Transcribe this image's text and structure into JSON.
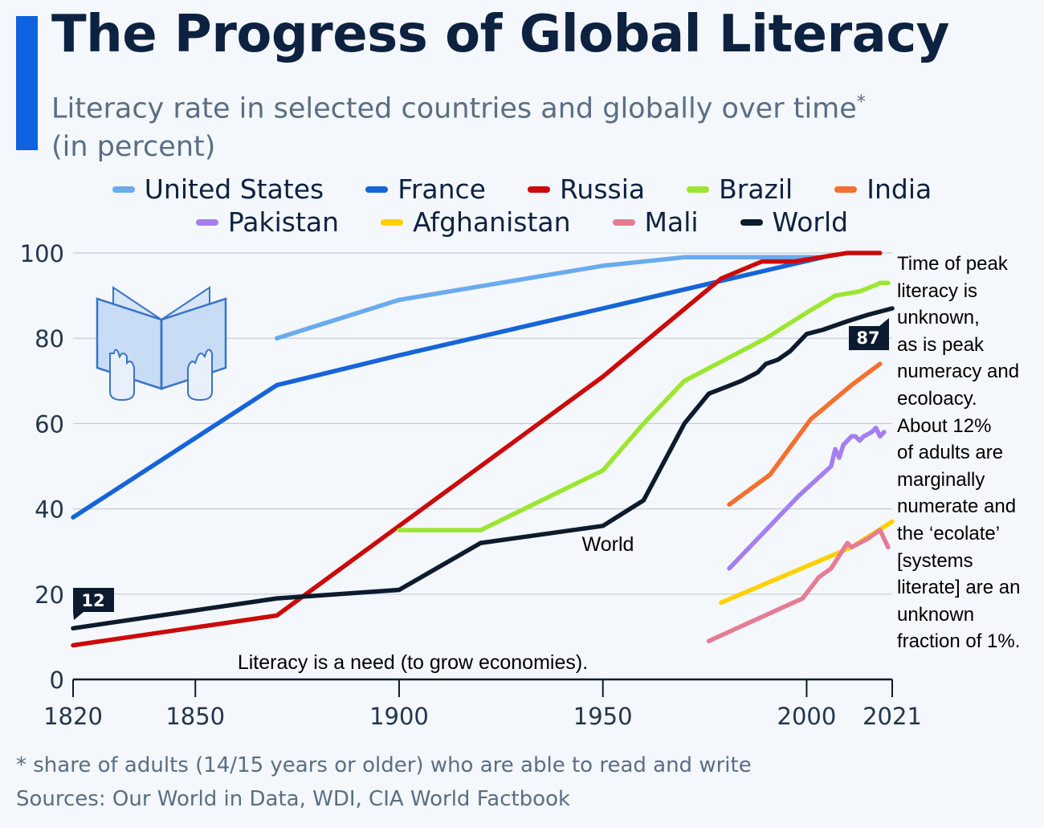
{
  "title": "The Progress of Global Literacy",
  "subtitle_line1": "Literacy rate in selected countries and globally over time",
  "subtitle_asterisk": "*",
  "subtitle_line2": "(in percent)",
  "footnote": "* share of adults (14/15 years or older) who are able to read and write",
  "sources": "Sources: Our World in Data, WDI, CIA World Factbook",
  "side_note_lines": [
    "Time of peak",
    "literacy is",
    "unknown,",
    "as is peak",
    "numeracy and",
    "ecoloacy.",
    "About 12%",
    "of adults are",
    "marginally",
    "numerate and",
    "the ‘ecolate’",
    "[systems",
    "literate] are an",
    "unknown",
    "fraction of 1%."
  ],
  "annotations": {
    "world_label": "World",
    "bottom_text": "Literacy is a need (to grow economies).",
    "start_badge": "12",
    "end_badge": "87"
  },
  "chart_data": {
    "type": "line",
    "xlim": [
      1820,
      2021
    ],
    "ylim": [
      0,
      100
    ],
    "x_ticks": [
      1820,
      1850,
      1900,
      1950,
      2000,
      2021
    ],
    "y_ticks": [
      0,
      20,
      40,
      60,
      80,
      100
    ],
    "grid": true,
    "legend": "top",
    "series": [
      {
        "name": "United States",
        "color": "#6aabed",
        "points": [
          [
            1870,
            80
          ],
          [
            1900,
            89
          ],
          [
            1950,
            97
          ],
          [
            1970,
            99
          ],
          [
            2004,
            99
          ]
        ]
      },
      {
        "name": "France",
        "color": "#1565d8",
        "points": [
          [
            1820,
            38
          ],
          [
            1870,
            69
          ],
          [
            1900,
            76
          ],
          [
            1950,
            87
          ],
          [
            2004,
            99
          ]
        ]
      },
      {
        "name": "Russia",
        "color": "#cc0a0a",
        "points": [
          [
            1820,
            8
          ],
          [
            1870,
            15
          ],
          [
            1900,
            36
          ],
          [
            1950,
            71
          ],
          [
            1979,
            94
          ],
          [
            1989,
            98
          ],
          [
            1997,
            98
          ],
          [
            2010,
            100
          ],
          [
            2018,
            100
          ]
        ]
      },
      {
        "name": "Brazil",
        "color": "#9ce630",
        "points": [
          [
            1900,
            35
          ],
          [
            1920,
            35
          ],
          [
            1950,
            49
          ],
          [
            1960,
            60
          ],
          [
            1970,
            70
          ],
          [
            1980,
            75
          ],
          [
            1990,
            80
          ],
          [
            2000,
            86
          ],
          [
            2007,
            90
          ],
          [
            2013,
            91
          ],
          [
            2017,
            92.5
          ],
          [
            2018,
            93
          ],
          [
            2020,
            93
          ]
        ]
      },
      {
        "name": "India",
        "color": "#f56f2e",
        "points": [
          [
            1981,
            41
          ],
          [
            1991,
            48
          ],
          [
            2001,
            61
          ],
          [
            2011,
            69
          ],
          [
            2018,
            74
          ]
        ]
      },
      {
        "name": "Pakistan",
        "color": "#a57ef0",
        "points": [
          [
            1981,
            26
          ],
          [
            1998,
            43
          ],
          [
            2006,
            50
          ],
          [
            2007,
            54
          ],
          [
            2008,
            52
          ],
          [
            2009,
            55
          ],
          [
            2011,
            57
          ],
          [
            2012,
            57
          ],
          [
            2013,
            56
          ],
          [
            2014,
            57
          ],
          [
            2016,
            58
          ],
          [
            2017,
            59
          ],
          [
            2018,
            57
          ],
          [
            2019,
            58
          ]
        ]
      },
      {
        "name": "Afghanistan",
        "color": "#ffd000",
        "points": [
          [
            1979,
            18
          ],
          [
            2011,
            31
          ],
          [
            2021,
            37
          ]
        ]
      },
      {
        "name": "Mali",
        "color": "#e57c93",
        "points": [
          [
            1976,
            9
          ],
          [
            1999,
            19
          ],
          [
            2003,
            24
          ],
          [
            2006,
            26
          ],
          [
            2010,
            32
          ],
          [
            2011,
            31
          ],
          [
            2015,
            33
          ],
          [
            2018,
            35
          ],
          [
            2020,
            31
          ]
        ]
      },
      {
        "name": "World",
        "color": "#0d1b2e",
        "points": [
          [
            1820,
            12
          ],
          [
            1870,
            19
          ],
          [
            1900,
            21
          ],
          [
            1920,
            32
          ],
          [
            1950,
            36
          ],
          [
            1960,
            42
          ],
          [
            1970,
            60
          ],
          [
            1976,
            67
          ],
          [
            1980,
            68.5
          ],
          [
            1984,
            70
          ],
          [
            1988,
            72
          ],
          [
            1990,
            74
          ],
          [
            1993,
            75
          ],
          [
            1996,
            77
          ],
          [
            2000,
            81
          ],
          [
            2004,
            82
          ],
          [
            2010,
            84
          ],
          [
            2015,
            85.5
          ],
          [
            2021,
            87
          ]
        ]
      }
    ]
  }
}
